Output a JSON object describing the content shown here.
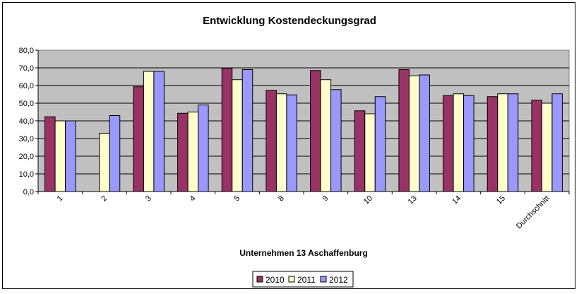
{
  "chart_data": {
    "type": "bar",
    "title": "Entwicklung Kostendeckungsgrad",
    "xlabel": "Unternehmen 13 Aschaffenburg",
    "ylabel": "",
    "ylim": [
      0,
      80
    ],
    "y_ticks": [
      "0,0",
      "10,0",
      "20,0",
      "30,0",
      "40,0",
      "50,0",
      "60,0",
      "70,0",
      "80,0"
    ],
    "grid": true,
    "legend_position": "bottom",
    "categories": [
      "1",
      "2",
      "3",
      "4",
      "5",
      "8",
      "9",
      "10",
      "13",
      "14",
      "15",
      "Durchschnitt"
    ],
    "series": [
      {
        "name": "2010",
        "color": "#993366",
        "values": [
          42.3,
          null,
          59.3,
          44.3,
          69.8,
          57.3,
          68.5,
          45.7,
          69.0,
          54.3,
          53.7,
          51.7
        ]
      },
      {
        "name": "2011",
        "color": "#FFFFCC",
        "values": [
          40.0,
          33.0,
          68.0,
          45.0,
          63.3,
          55.3,
          63.3,
          44.0,
          65.5,
          55.3,
          55.3,
          50.0
        ]
      },
      {
        "name": "2012",
        "color": "#9999FF",
        "values": [
          40.0,
          43.0,
          68.0,
          49.0,
          69.0,
          54.7,
          57.7,
          53.7,
          66.0,
          54.3,
          55.3,
          55.3
        ]
      }
    ],
    "plot_background": "#C0C0C0"
  }
}
